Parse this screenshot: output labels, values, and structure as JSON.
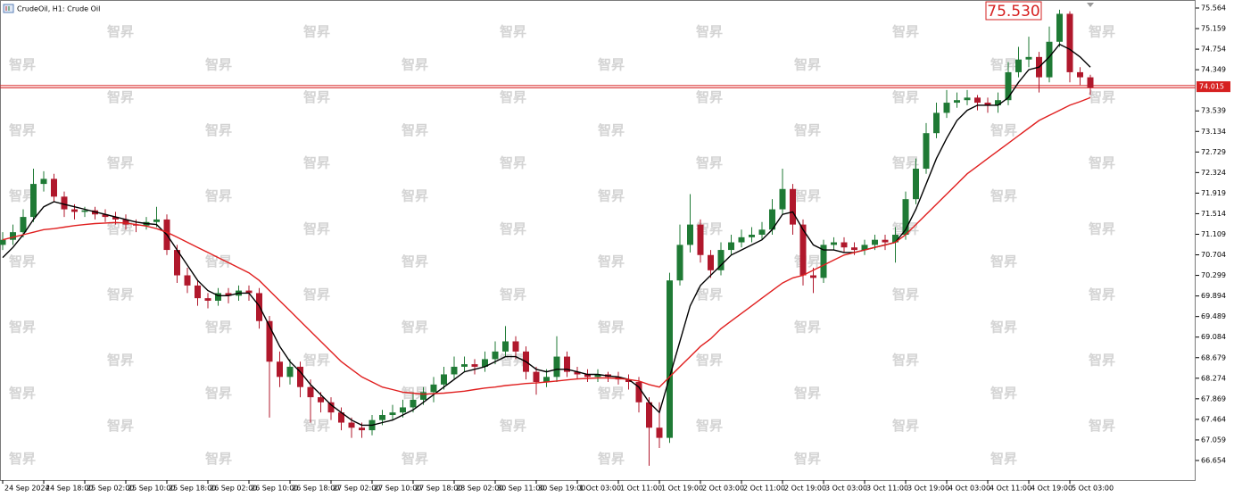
{
  "chart_data": {
    "type": "candlestick",
    "title": "CrudeOil, H1:  Crude Oil",
    "watermark": "智昇",
    "categories": [
      "24 Sep 2024",
      null,
      null,
      null,
      "24 Sep 18:00",
      null,
      null,
      null,
      "25 Sep 02:00",
      null,
      null,
      null,
      "25 Sep 10:00",
      null,
      null,
      null,
      "25 Sep 18:00",
      null,
      null,
      null,
      "26 Sep 02:00",
      null,
      null,
      null,
      "26 Sep 10:00",
      null,
      null,
      null,
      "26 Sep 18:00",
      null,
      null,
      null,
      "27 Sep 02:00",
      null,
      null,
      null,
      "27 Sep 10:00",
      null,
      null,
      null,
      "27 Sep 18:00",
      null,
      null,
      null,
      "28 Sep 02:00",
      null,
      null,
      null,
      "30 Sep 11:00",
      null,
      null,
      null,
      "30 Sep 19:00",
      null,
      null,
      null,
      "1 Oct 03:00",
      null,
      null,
      null,
      "1 Oct 11:00",
      null,
      null,
      null,
      "1 Oct 19:00",
      null,
      null,
      null,
      "2 Oct 03:00",
      null,
      null,
      null,
      "2 Oct 11:00",
      null,
      null,
      null,
      "2 Oct 19:00",
      null,
      null,
      null,
      "3 Oct 03:00",
      null,
      null,
      null,
      "3 Oct 11:00",
      null,
      null,
      null,
      "3 Oct 19:00",
      null,
      null,
      null,
      "4 Oct 03:00",
      null,
      null,
      null,
      "4 Oct 11:00",
      null,
      null,
      null,
      "4 Oct 19:00",
      null,
      null,
      null,
      "5 Oct 03:00",
      null,
      null
    ],
    "candles": {
      "up_color": "#1f7a35",
      "down_color": "#b0182c",
      "open": [
        70.9,
        71.0,
        71.15,
        71.45,
        72.1,
        72.2,
        71.85,
        71.6,
        71.55,
        71.58,
        71.5,
        71.45,
        71.4,
        71.3,
        71.28,
        71.35,
        71.4,
        70.8,
        70.3,
        70.1,
        69.85,
        69.8,
        69.95,
        69.9,
        70.0,
        69.95,
        69.4,
        68.6,
        68.3,
        68.5,
        68.1,
        67.9,
        67.8,
        67.6,
        67.4,
        67.3,
        67.25,
        67.45,
        67.55,
        67.6,
        67.7,
        67.85,
        68.0,
        68.15,
        68.35,
        68.5,
        68.55,
        68.5,
        68.65,
        68.8,
        69.0,
        68.8,
        68.4,
        68.2,
        68.3,
        68.7,
        68.4,
        68.35,
        68.3,
        68.35,
        68.3,
        68.25,
        68.2,
        67.8,
        67.3,
        67.1,
        70.2,
        70.9,
        71.3,
        70.7,
        70.4,
        70.8,
        70.95,
        71.05,
        71.1,
        71.2,
        71.6,
        72.0,
        71.3,
        70.3,
        70.25,
        70.9,
        70.95,
        70.85,
        70.8,
        70.9,
        71.0,
        70.95,
        71.1,
        71.8,
        72.4,
        73.1,
        73.5,
        73.7,
        73.75,
        73.8,
        73.7,
        73.65,
        73.75,
        74.3,
        74.55,
        74.6,
        74.2,
        74.9,
        75.45,
        74.3,
        74.2
      ],
      "high": [
        71.15,
        71.3,
        71.6,
        72.4,
        72.35,
        72.3,
        71.95,
        71.7,
        71.65,
        71.65,
        71.6,
        71.55,
        71.5,
        71.4,
        71.45,
        71.65,
        71.5,
        70.9,
        70.45,
        70.2,
        69.95,
        70.05,
        70.05,
        70.1,
        70.1,
        70.05,
        69.5,
        68.8,
        68.65,
        68.6,
        68.25,
        68.0,
        67.9,
        67.7,
        67.5,
        67.4,
        67.55,
        67.65,
        67.75,
        67.85,
        68.0,
        68.1,
        68.3,
        68.5,
        68.7,
        68.7,
        68.65,
        68.8,
        69.0,
        69.3,
        69.1,
        68.9,
        68.5,
        68.45,
        69.1,
        68.8,
        68.5,
        68.45,
        68.45,
        68.4,
        68.4,
        68.35,
        68.3,
        67.9,
        67.8,
        70.35,
        71.3,
        71.9,
        71.4,
        70.8,
        70.95,
        71.1,
        71.2,
        71.25,
        71.35,
        71.8,
        72.4,
        72.1,
        71.4,
        70.45,
        71.0,
        71.05,
        71.05,
        70.95,
        71.0,
        71.1,
        71.1,
        71.25,
        71.95,
        72.6,
        73.3,
        73.7,
        73.95,
        73.9,
        73.95,
        73.85,
        73.8,
        73.9,
        74.5,
        74.8,
        75.0,
        74.7,
        75.2,
        75.53,
        75.5,
        74.4,
        74.25
      ],
      "low": [
        70.8,
        70.9,
        71.05,
        71.35,
        71.95,
        71.75,
        71.45,
        71.4,
        71.45,
        71.4,
        71.35,
        71.3,
        71.2,
        71.15,
        71.2,
        71.25,
        70.7,
        70.15,
        69.95,
        69.7,
        69.65,
        69.7,
        69.75,
        69.8,
        69.8,
        69.25,
        67.5,
        68.1,
        68.15,
        67.9,
        67.4,
        67.6,
        67.45,
        67.25,
        67.1,
        67.1,
        67.15,
        67.35,
        67.45,
        67.5,
        67.6,
        67.75,
        67.8,
        68.05,
        68.25,
        68.4,
        68.35,
        68.4,
        68.55,
        68.7,
        68.65,
        68.25,
        67.95,
        68.1,
        68.2,
        68.3,
        68.25,
        68.2,
        68.2,
        68.2,
        68.15,
        68.05,
        67.6,
        66.55,
        66.9,
        67.0,
        70.1,
        70.75,
        70.55,
        70.25,
        70.3,
        70.7,
        70.85,
        70.95,
        71.0,
        71.1,
        71.5,
        71.1,
        70.1,
        69.95,
        70.15,
        70.8,
        70.75,
        70.7,
        70.7,
        70.8,
        70.8,
        70.55,
        71.0,
        71.7,
        72.3,
        73.0,
        73.4,
        73.6,
        73.65,
        73.55,
        73.5,
        73.5,
        73.65,
        74.2,
        74.4,
        73.9,
        74.1,
        74.8,
        74.1,
        74.05,
        73.85
      ],
      "close": [
        71.0,
        71.15,
        71.45,
        72.1,
        72.2,
        71.85,
        71.6,
        71.55,
        71.58,
        71.5,
        71.45,
        71.4,
        71.3,
        71.28,
        71.35,
        71.4,
        70.8,
        70.3,
        70.1,
        69.85,
        69.8,
        69.95,
        69.9,
        70.0,
        69.95,
        69.4,
        68.6,
        68.3,
        68.5,
        68.1,
        67.9,
        67.8,
        67.6,
        67.4,
        67.3,
        67.25,
        67.45,
        67.55,
        67.6,
        67.7,
        67.85,
        68.0,
        68.15,
        68.35,
        68.5,
        68.55,
        68.5,
        68.65,
        68.8,
        69.0,
        68.8,
        68.4,
        68.2,
        68.3,
        68.7,
        68.4,
        68.35,
        68.3,
        68.35,
        68.3,
        68.25,
        68.2,
        67.8,
        67.3,
        67.1,
        70.2,
        70.9,
        71.3,
        70.7,
        70.4,
        70.8,
        70.95,
        71.05,
        71.1,
        71.2,
        71.6,
        72.0,
        71.3,
        70.3,
        70.25,
        70.9,
        70.95,
        70.85,
        70.8,
        70.9,
        71.0,
        70.95,
        71.1,
        71.8,
        72.4,
        73.1,
        73.5,
        73.7,
        73.75,
        73.8,
        73.7,
        73.65,
        73.75,
        74.3,
        74.55,
        74.6,
        74.2,
        74.9,
        75.45,
        74.3,
        74.2,
        74.0
      ]
    },
    "series": [
      {
        "color": "#000000",
        "values": [
          70.65,
          70.85,
          71.1,
          71.4,
          71.65,
          71.75,
          71.7,
          71.65,
          71.6,
          71.55,
          71.5,
          71.45,
          71.4,
          71.35,
          71.32,
          71.3,
          71.1,
          70.8,
          70.5,
          70.2,
          70.0,
          69.9,
          69.9,
          69.95,
          69.95,
          69.7,
          69.3,
          68.9,
          68.6,
          68.4,
          68.15,
          67.95,
          67.75,
          67.6,
          67.45,
          67.35,
          67.35,
          67.4,
          67.45,
          67.55,
          67.65,
          67.8,
          67.95,
          68.1,
          68.25,
          68.4,
          68.45,
          68.5,
          68.6,
          68.7,
          68.7,
          68.6,
          68.45,
          68.4,
          68.45,
          68.45,
          68.4,
          68.35,
          68.35,
          68.32,
          68.3,
          68.25,
          68.1,
          67.8,
          67.6,
          68.3,
          69.0,
          69.7,
          70.1,
          70.3,
          70.5,
          70.7,
          70.8,
          70.9,
          71.0,
          71.2,
          71.5,
          71.55,
          71.2,
          70.9,
          70.8,
          70.8,
          70.75,
          70.75,
          70.8,
          70.85,
          70.9,
          70.95,
          71.2,
          71.6,
          72.1,
          72.6,
          73.0,
          73.35,
          73.55,
          73.65,
          73.65,
          73.65,
          73.8,
          74.1,
          74.35,
          74.4,
          74.6,
          74.85,
          74.75,
          74.6,
          74.4
        ]
      },
      {
        "color": "#e01f1f",
        "values": [
          71.0,
          71.05,
          71.1,
          71.15,
          71.2,
          71.22,
          71.25,
          71.28,
          71.3,
          71.32,
          71.33,
          71.34,
          71.33,
          71.3,
          71.27,
          71.22,
          71.15,
          71.05,
          70.95,
          70.85,
          70.75,
          70.65,
          70.55,
          70.45,
          70.35,
          70.2,
          70.0,
          69.8,
          69.6,
          69.4,
          69.2,
          69.0,
          68.8,
          68.6,
          68.45,
          68.3,
          68.2,
          68.1,
          68.05,
          68.0,
          67.98,
          67.96,
          67.97,
          67.98,
          68.0,
          68.02,
          68.05,
          68.08,
          68.1,
          68.13,
          68.15,
          68.17,
          68.18,
          68.2,
          68.22,
          68.24,
          68.26,
          68.27,
          68.28,
          68.28,
          68.27,
          68.25,
          68.22,
          68.15,
          68.1,
          68.3,
          68.5,
          68.7,
          68.9,
          69.05,
          69.25,
          69.4,
          69.55,
          69.7,
          69.85,
          70.0,
          70.15,
          70.25,
          70.3,
          70.4,
          70.5,
          70.6,
          70.7,
          70.75,
          70.8,
          70.85,
          70.9,
          70.95,
          71.1,
          71.3,
          71.5,
          71.7,
          71.9,
          72.1,
          72.3,
          72.45,
          72.6,
          72.75,
          72.9,
          73.05,
          73.2,
          73.35,
          73.45,
          73.55,
          73.65,
          73.72,
          73.8
        ]
      }
    ],
    "price_line": {
      "value": 74.015,
      "color": "#d62020"
    },
    "annotation": {
      "value": 75.53,
      "label": "75.530",
      "color": "#d62020"
    },
    "ylim": [
      66.267,
      75.722
    ],
    "yticks": [
      75.564,
      75.159,
      74.754,
      74.349,
      73.539,
      73.134,
      72.729,
      72.324,
      71.919,
      71.514,
      71.109,
      70.704,
      70.299,
      69.894,
      69.489,
      69.084,
      68.679,
      68.274,
      67.869,
      67.464,
      67.059,
      66.654
    ],
    "grid": false
  }
}
